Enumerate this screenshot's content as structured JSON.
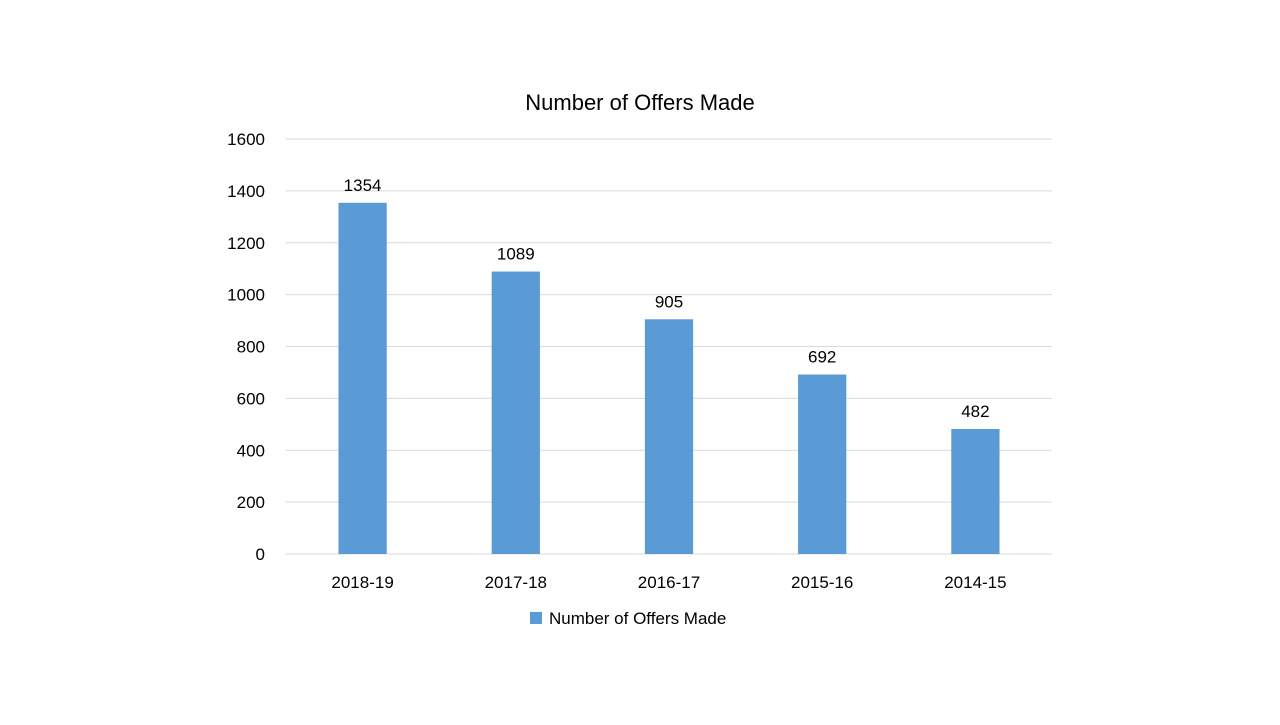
{
  "chart_data": {
    "type": "bar",
    "title": "Number of Offers Made",
    "categories": [
      "2018-19",
      "2017-18",
      "2016-17",
      "2015-16",
      "2014-15"
    ],
    "series": [
      {
        "name": "Number of Offers Made",
        "values": [
          1354,
          1089,
          905,
          692,
          482
        ],
        "color": "#5b9bd5"
      }
    ],
    "ylim": [
      0,
      1600
    ],
    "yticks": [
      0,
      200,
      400,
      600,
      800,
      1000,
      1200,
      1400,
      1600
    ],
    "grid": true,
    "legend": "bottom",
    "data_labels": true
  }
}
